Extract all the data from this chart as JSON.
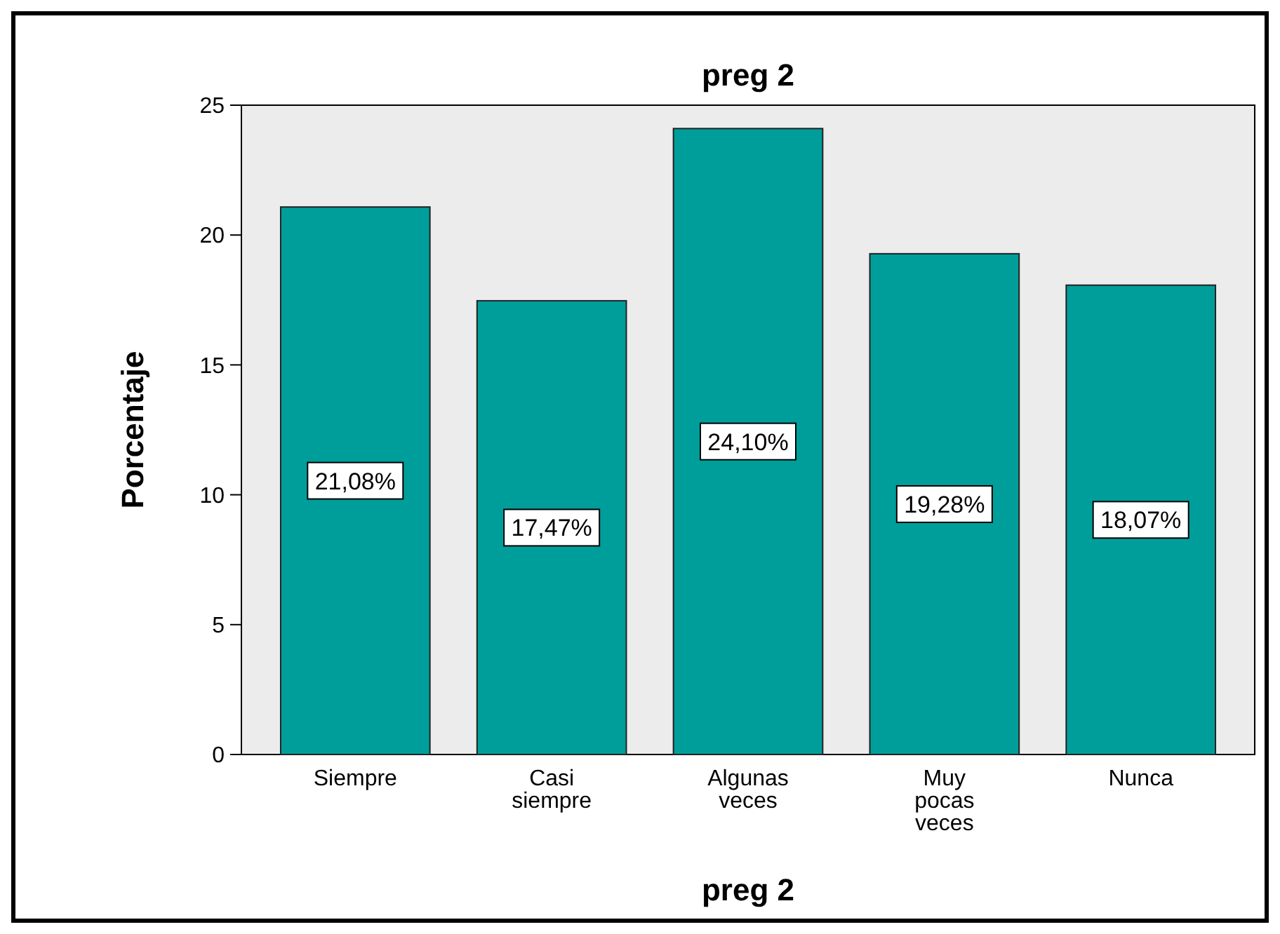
{
  "chart_data": {
    "type": "bar",
    "title": "preg 2",
    "xlabel": "preg 2",
    "ylabel": "Porcentaje",
    "categories": [
      "Siempre",
      "Casi siempre",
      "Algunas veces",
      "Muy pocas veces",
      "Nunca"
    ],
    "values": [
      21.08,
      17.47,
      24.1,
      19.28,
      18.07
    ],
    "value_labels": [
      "21,08%",
      "17,47%",
      "24,10%",
      "19,28%",
      "18,07%"
    ],
    "color": "#009e9a",
    "ylim": [
      0,
      25
    ],
    "yticks": [
      0,
      5,
      10,
      15,
      20,
      25
    ]
  }
}
